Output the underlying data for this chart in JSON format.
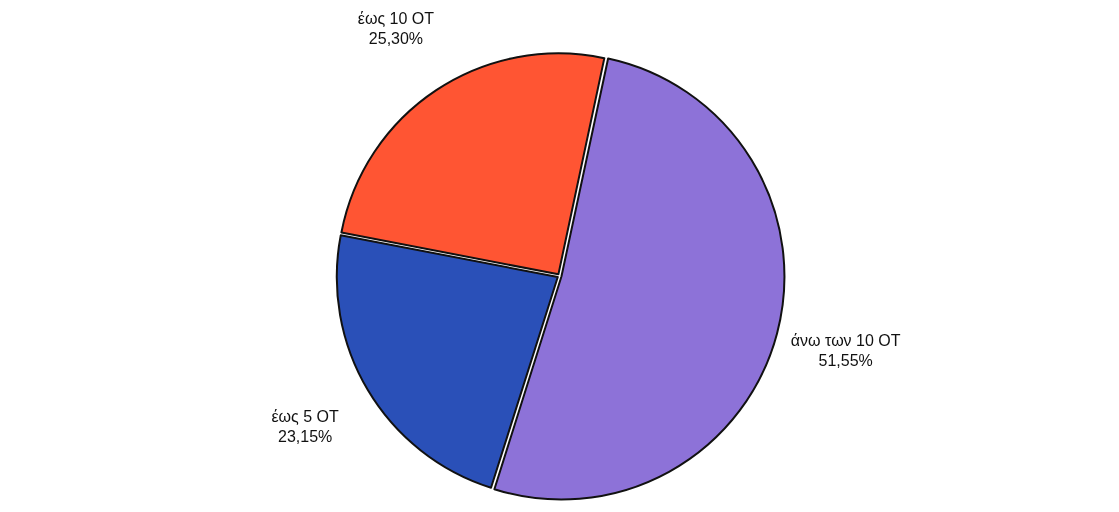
{
  "chart_data": {
    "type": "pie",
    "categories": [
      "άνω των 10 OT",
      "έως 5 OT",
      "έως 10 OT"
    ],
    "values": [
      51.55,
      23.15,
      25.3
    ],
    "colors": [
      "#8d72d8",
      "#2a50b8",
      "#ff5533"
    ],
    "value_labels": [
      "51,55%",
      "23,15%",
      "25,30%"
    ]
  }
}
